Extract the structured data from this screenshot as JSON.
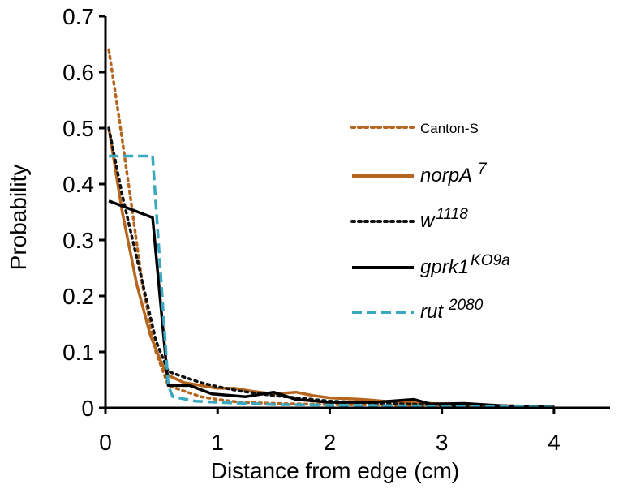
{
  "chart_data": {
    "type": "line",
    "title": "",
    "xlabel": "Distance from edge (cm)",
    "ylabel": "Probability",
    "xlim": [
      0,
      4.5
    ],
    "ylim": [
      0,
      0.7
    ],
    "xticks": [
      "0",
      "1",
      "2",
      "3",
      "4"
    ],
    "yticks": [
      "0",
      "0.1",
      "0.2",
      "0.3",
      "0.4",
      "0.5",
      "0.6",
      "0.7"
    ],
    "grid": false,
    "legend_position": "right",
    "series": [
      {
        "name": "Canton-S",
        "name_sup": "",
        "italic": false,
        "color": "#b5651d",
        "style": "dotted",
        "x": [
          0.03,
          0.12,
          0.22,
          0.33,
          0.45,
          0.56,
          0.7,
          0.85,
          1.0,
          1.2,
          1.5,
          2.0,
          2.5,
          3.0,
          3.5,
          4.0
        ],
        "y": [
          0.64,
          0.52,
          0.38,
          0.22,
          0.1,
          0.04,
          0.03,
          0.02,
          0.015,
          0.01,
          0.008,
          0.006,
          0.005,
          0.004,
          0.003,
          0.002
        ]
      },
      {
        "name": "norpA",
        "name_sup": "7",
        "italic": true,
        "color": "#b5651d",
        "style": "solid",
        "x": [
          0.03,
          0.15,
          0.28,
          0.4,
          0.5,
          0.56,
          0.7,
          0.85,
          1.0,
          1.15,
          1.3,
          1.5,
          1.7,
          1.85,
          2.0,
          2.3,
          2.6,
          2.9,
          3.2,
          3.5,
          4.0
        ],
        "y": [
          0.5,
          0.35,
          0.22,
          0.13,
          0.08,
          0.058,
          0.045,
          0.04,
          0.035,
          0.035,
          0.03,
          0.025,
          0.028,
          0.022,
          0.018,
          0.015,
          0.01,
          0.008,
          0.006,
          0.004,
          0.002
        ]
      },
      {
        "name": "w",
        "name_sup": "1118",
        "italic": true,
        "color": "#111111",
        "style": "dotted",
        "x": [
          0.03,
          0.15,
          0.3,
          0.45,
          0.56,
          0.7,
          0.85,
          1.0,
          1.2,
          1.5,
          2.0,
          2.5,
          3.0,
          3.5,
          4.0
        ],
        "y": [
          0.5,
          0.38,
          0.25,
          0.12,
          0.065,
          0.055,
          0.045,
          0.038,
          0.03,
          0.022,
          0.012,
          0.008,
          0.005,
          0.004,
          0.002
        ]
      },
      {
        "name": "gprk1",
        "name_sup": "KO9a",
        "italic": true,
        "color": "#000000",
        "style": "solid",
        "x": [
          0.03,
          0.42,
          0.56,
          0.75,
          0.95,
          1.25,
          1.5,
          1.7,
          2.0,
          2.4,
          2.75,
          2.9,
          3.2,
          3.6,
          4.0
        ],
        "y": [
          0.37,
          0.34,
          0.04,
          0.04,
          0.025,
          0.02,
          0.028,
          0.015,
          0.01,
          0.01,
          0.015,
          0.007,
          0.008,
          0.003,
          0.001
        ]
      },
      {
        "name": "rut",
        "name_sup": "2080",
        "italic": true,
        "color": "#3aa8c1",
        "style": "dashed",
        "x": [
          0.03,
          0.42,
          0.56,
          0.6,
          0.8,
          1.0,
          1.5,
          2.0,
          2.5,
          3.0,
          3.5,
          4.0
        ],
        "y": [
          0.45,
          0.45,
          0.04,
          0.02,
          0.012,
          0.01,
          0.006,
          0.005,
          0.004,
          0.003,
          0.002,
          0.001
        ]
      }
    ]
  }
}
